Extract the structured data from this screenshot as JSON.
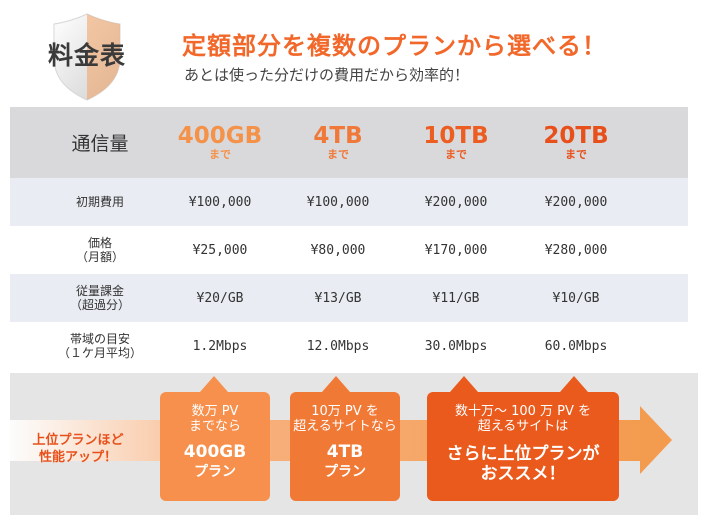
{
  "header": {
    "badge_label": "料金表",
    "headline": "定額部分を複数のプランから選べる！",
    "subline": "あとは使った分だけの費用だから効率的！"
  },
  "table": {
    "corner_label": "通信量",
    "plans": [
      {
        "name": "400GB",
        "sub": "まで"
      },
      {
        "name": "4TB",
        "sub": "まで"
      },
      {
        "name": "10TB",
        "sub": "まで"
      },
      {
        "name": "20TB",
        "sub": "まで"
      }
    ],
    "rows": [
      {
        "label_line1": "初期費用",
        "label_line2": "",
        "values": [
          "¥100,000",
          "¥100,000",
          "¥200,000",
          "¥200,000"
        ]
      },
      {
        "label_line1": "価格",
        "label_line2": "（月額）",
        "values": [
          "¥25,000",
          "¥80,000",
          "¥170,000",
          "¥280,000"
        ]
      },
      {
        "label_line1": "従量課金",
        "label_line2": "（超過分）",
        "values": [
          "¥20/GB",
          "¥13/GB",
          "¥11/GB",
          "¥10/GB"
        ]
      },
      {
        "label_line1": "帯域の目安",
        "label_line2": "（１ケ月平均）",
        "values": [
          "1.2Mbps",
          "12.0Mbps",
          "30.0Mbps",
          "60.0Mbps"
        ]
      }
    ]
  },
  "recommend": {
    "upgrade_line1": "上位プランほど",
    "upgrade_line2": "性能アップ！",
    "box1": {
      "line1": "数万 PV",
      "line2": "までなら",
      "plan": "400GB",
      "plan_sub": "プラン"
    },
    "box2": {
      "line1": "10万 PV を",
      "line2": "超えるサイトなら",
      "plan": "4TB",
      "plan_sub": "プラン"
    },
    "box3": {
      "line1": "数十万～ 100 万 PV を",
      "line2": "超えるサイトは",
      "plan": "さらに上位プランが",
      "plan_sub": "おススメ！"
    }
  },
  "colors": {
    "accent": "#f2672a",
    "header_bg": "#d9d9db",
    "row_alt_bg": "#e9edf3",
    "band_bg": "#e5e5e5"
  }
}
